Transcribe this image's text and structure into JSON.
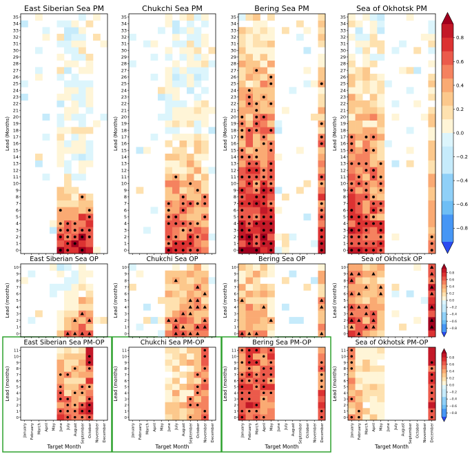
{
  "figure": {
    "months": [
      "January",
      "February",
      "March",
      "April",
      "May",
      "June",
      "July",
      "August",
      "September",
      "October",
      "November",
      "December"
    ],
    "xlabel": "Target Month",
    "pm_ylabel": "Lead (Months)",
    "op_ylabel": "Lead (months)",
    "cbar_big_ticks": [
      "0.8",
      "0.6",
      "0.4",
      "0.2",
      "0.0",
      "−0.2",
      "−0.4",
      "−0.6",
      "−0.8"
    ],
    "cbar_small_ticks": [
      "0.8",
      "0.6",
      "0.4",
      "0.2",
      "0.0",
      "−0.2",
      "−0.4",
      "−0.6",
      "−0.8"
    ],
    "highlight_color": "#2ca02c"
  },
  "chart_data": [
    {
      "type": "heatmap",
      "title": "East Siberian Sea PM",
      "region": "East Siberian Sea",
      "row": "PM",
      "leads": [
        0,
        35
      ],
      "active_months": [
        6,
        7,
        8,
        9,
        10
      ],
      "strong_month": 10,
      "peak": [
        0.75,
        0.8,
        0.85,
        0.95,
        0.9
      ],
      "decay": 0.09
    },
    {
      "type": "heatmap",
      "title": "Chukchi Sea PM",
      "region": "Chukchi Sea",
      "row": "PM",
      "leads": [
        0,
        35
      ],
      "active_months": [
        6,
        7,
        8,
        9,
        10,
        11
      ],
      "strong_month": 11,
      "peak": [
        0.65,
        0.6,
        0.6,
        0.65,
        0.6,
        0.55
      ],
      "decay": 0.05
    },
    {
      "type": "heatmap",
      "title": "Bering Sea PM",
      "region": "Bering Sea",
      "row": "PM",
      "leads": [
        0,
        35
      ],
      "active_months": [
        1,
        2,
        3,
        4,
        5,
        12
      ],
      "strong_month": 2,
      "peak": [
        0.8,
        0.8,
        0.8,
        0.8,
        0.75,
        0.7
      ],
      "decay": 0.025
    },
    {
      "type": "heatmap",
      "title": "Sea of Okhotsk PM",
      "region": "Sea of Okhotsk",
      "row": "PM",
      "leads": [
        0,
        35
      ],
      "active_months": [
        1,
        2,
        3,
        4,
        5,
        12
      ],
      "strong_month": 1,
      "peak": [
        0.75,
        0.7,
        0.65,
        0.7,
        0.6,
        0.45
      ],
      "decay": 0.03
    },
    {
      "type": "heatmap",
      "title": "East Siberian Sea OP",
      "region": "East Siberian Sea",
      "row": "OP",
      "leads": [
        0,
        10
      ],
      "active_months": [
        6,
        7,
        8,
        9,
        10
      ],
      "strong_month": 9,
      "peak": [
        0.25,
        0.4,
        0.45,
        0.55,
        0.5
      ],
      "decay": 0.12
    },
    {
      "type": "heatmap",
      "title": "Chukchi Sea OP",
      "region": "Chukchi Sea",
      "row": "OP",
      "leads": [
        0,
        10
      ],
      "active_months": [
        6,
        7,
        8,
        9,
        10,
        11
      ],
      "strong_month": 10,
      "peak": [
        0.35,
        0.45,
        0.45,
        0.5,
        0.55,
        0.5
      ],
      "decay": 0.06
    },
    {
      "type": "heatmap",
      "title": "Bering Sea OP",
      "region": "Bering Sea",
      "row": "OP",
      "leads": [
        0,
        10
      ],
      "active_months": [
        1,
        2,
        3,
        4,
        5,
        12
      ],
      "strong_month": 3,
      "peak": [
        0.4,
        0.4,
        0.4,
        0.35,
        0.3,
        0.5
      ],
      "decay": 0.05
    },
    {
      "type": "heatmap",
      "title": "Sea of Okhotsk OP",
      "region": "Sea of Okhotsk",
      "row": "OP",
      "leads": [
        0,
        10
      ],
      "active_months": [
        1,
        2,
        3,
        4,
        5,
        12
      ],
      "strong_month": 4,
      "peak": [
        0.6,
        0.5,
        0.45,
        0.5,
        0.35,
        0.8
      ],
      "decay": 0.03
    },
    {
      "type": "heatmap",
      "title": "East Siberian Sea PM-OP",
      "region": "East Siberian Sea",
      "row": "PM-OP",
      "leads": [
        0,
        11
      ],
      "active_months": [
        6,
        7,
        8,
        9,
        10
      ],
      "strong_month": 10,
      "peak": [
        0.55,
        0.5,
        0.45,
        0.55,
        0.75
      ],
      "decay": 0.05
    },
    {
      "type": "heatmap",
      "title": "Chukchi Sea PM-OP",
      "region": "Chukchi Sea",
      "row": "PM-OP",
      "leads": [
        0,
        11
      ],
      "active_months": [
        6,
        7,
        8,
        9,
        10,
        11
      ],
      "strong_month": 11,
      "peak": [
        0.2,
        0.25,
        0.3,
        0.4,
        0.5,
        0.6
      ],
      "decay": 0.05
    },
    {
      "type": "heatmap",
      "title": "Bering Sea PM-OP",
      "region": "Bering Sea",
      "row": "PM-OP",
      "leads": [
        0,
        11
      ],
      "active_months": [
        1,
        2,
        3,
        4,
        5,
        12
      ],
      "strong_month": 2,
      "peak": [
        0.6,
        0.65,
        0.6,
        0.55,
        0.6,
        0.6
      ],
      "decay": 0.01
    },
    {
      "type": "heatmap",
      "title": "Sea of Okhotsk PM-OP",
      "region": "Sea of Okhotsk",
      "row": "PM-OP",
      "leads": [
        0,
        11
      ],
      "active_months": [
        1,
        2,
        3,
        4,
        5,
        12
      ],
      "strong_month": 12,
      "peak": [
        0.4,
        0.3,
        0.2,
        0.15,
        0.15,
        0.75
      ],
      "decay": 0.02
    }
  ]
}
